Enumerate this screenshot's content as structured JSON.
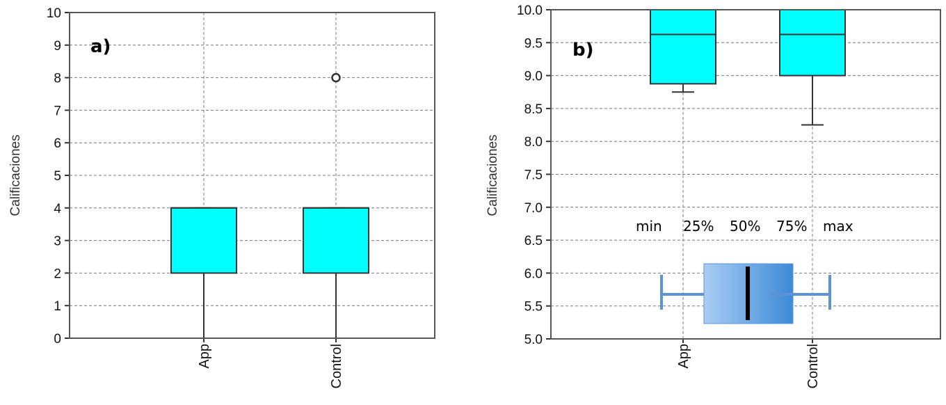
{
  "chart_data": [
    {
      "type": "boxplot",
      "panel_label": "a)",
      "ylabel": "Calificaciones",
      "ylim": [
        0,
        10
      ],
      "yticks": [
        "0",
        "1",
        "2",
        "3",
        "4",
        "5",
        "6",
        "7",
        "8",
        "9",
        "10"
      ],
      "categories": [
        "App",
        "Control"
      ],
      "boxes": [
        {
          "category": "App",
          "min": 0,
          "q1": 2,
          "median": 4,
          "q3": 4,
          "max": 4,
          "outliers": []
        },
        {
          "category": "Control",
          "min": 0,
          "q1": 2,
          "median": 4,
          "q3": 4,
          "max": 4,
          "outliers": [
            8
          ]
        }
      ],
      "box_color": "#00ffff",
      "grid": true
    },
    {
      "type": "boxplot",
      "panel_label": "b)",
      "ylabel": "Calificaciones",
      "ylim": [
        5.0,
        10.0
      ],
      "yticks": [
        "5.0",
        "5.5",
        "6.0",
        "6.5",
        "7.0",
        "7.5",
        "8.0",
        "8.5",
        "9.0",
        "9.5",
        "10.0"
      ],
      "categories": [
        "App",
        "Control"
      ],
      "boxes": [
        {
          "category": "App",
          "min": 8.75,
          "q1": 8.875,
          "median": 9.625,
          "q3": 10.0,
          "max": 10.0,
          "outliers": []
        },
        {
          "category": "Control",
          "min": 8.25,
          "q1": 9.0,
          "median": 9.625,
          "q3": 10.0,
          "max": 10.0,
          "outliers": []
        }
      ],
      "box_color": "#00ffff",
      "grid": true,
      "legend": {
        "labels": [
          "min",
          "25%",
          "50%",
          "75%",
          "max"
        ],
        "colors": {
          "light": "#a9cdf5",
          "dark": "#3d8ad6",
          "stroke": "#5b93d6"
        }
      }
    }
  ]
}
